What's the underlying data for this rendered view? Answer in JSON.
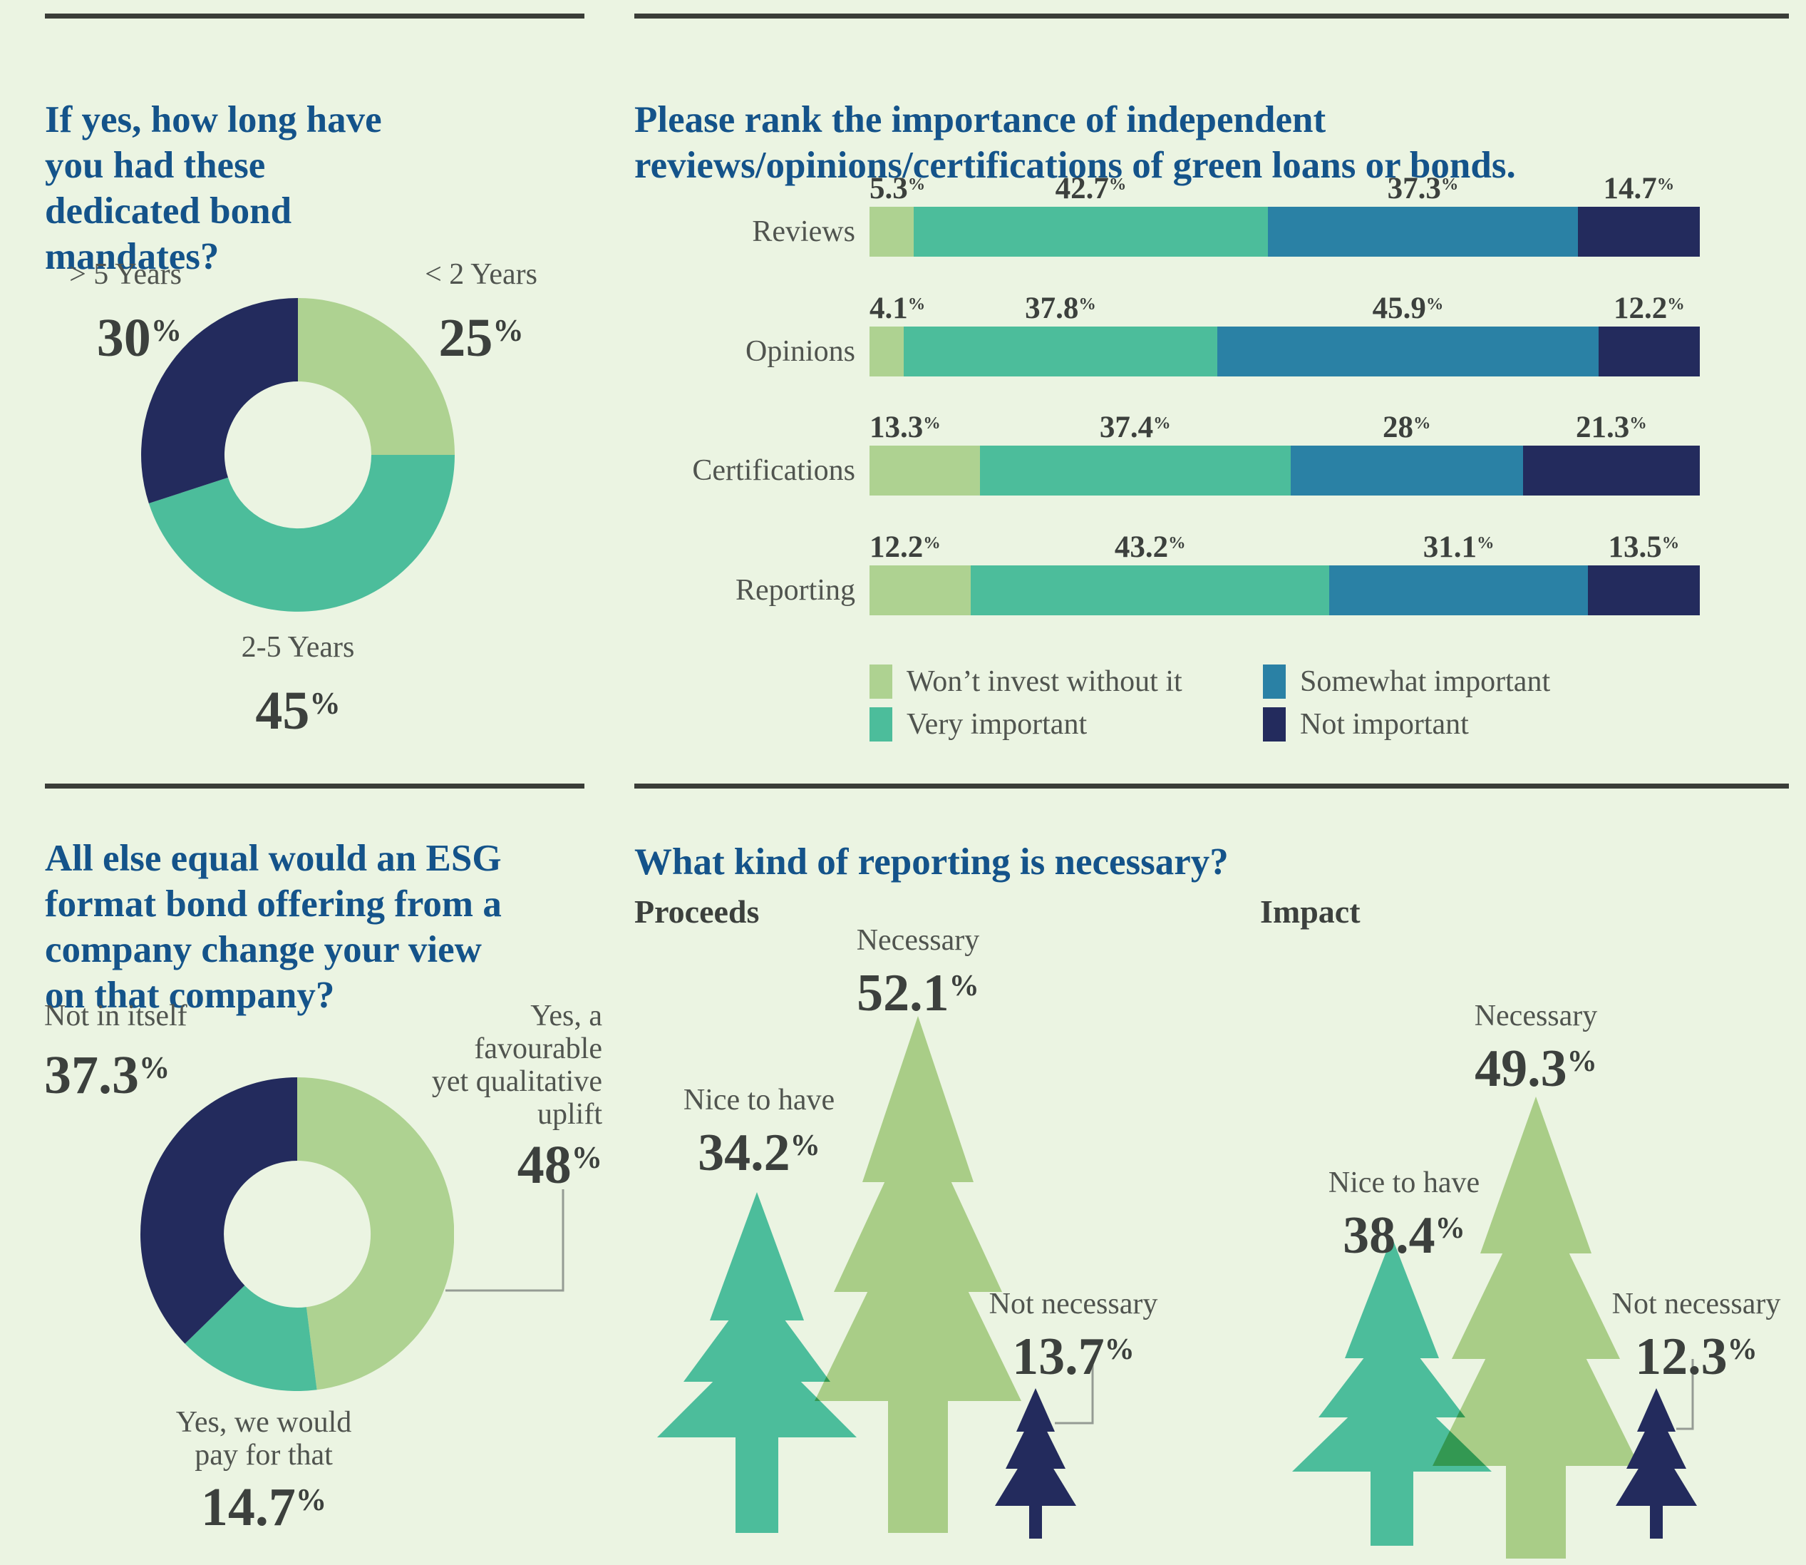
{
  "sym": {
    "pct": "%"
  },
  "palette": {
    "background": "#ebf4e2",
    "light_green": "#aed291",
    "teal": "#4cbd9b",
    "blue": "#2a81a5",
    "navy": "#232b5d",
    "tree_green": "#a9cd87",
    "title_blue": "#14538a",
    "text_gray": "#50544f",
    "number_gray": "#3c403d",
    "rule": "#3a3d38",
    "callout": "#959b94"
  },
  "chart_data": [
    {
      "type": "pie",
      "subtype": "donut",
      "title": "If yes, how long have\nyou had these\ndedicated bond\nmandates?",
      "slices": [
        {
          "label": "< 2 Years",
          "value": 25,
          "color": "light_green"
        },
        {
          "label": "2-5 Years",
          "value": 45,
          "color": "teal"
        },
        {
          "label": "> 5 Years",
          "value": 30,
          "color": "navy"
        }
      ]
    },
    {
      "type": "bar",
      "subtype": "horizontal-stacked",
      "title": "Please rank the importance of independent\nreviews/opinions/certifications of green loans or bonds.",
      "categories": [
        "Reviews",
        "Opinions",
        "Certifications",
        "Reporting"
      ],
      "series": [
        {
          "name": "Won’t invest without it",
          "color": "light_green",
          "values": [
            5.3,
            4.1,
            13.3,
            12.2
          ]
        },
        {
          "name": "Very important",
          "color": "teal",
          "values": [
            42.7,
            37.8,
            37.4,
            43.2
          ]
        },
        {
          "name": "Somewhat important",
          "color": "blue",
          "values": [
            37.3,
            45.9,
            28,
            31.1
          ]
        },
        {
          "name": "Not important",
          "color": "navy",
          "values": [
            14.7,
            12.2,
            21.3,
            13.5
          ]
        }
      ],
      "xlim": [
        0,
        100
      ],
      "legend_position": "bottom"
    },
    {
      "type": "pie",
      "subtype": "donut",
      "title": "All else equal would an ESG\nformat bond offering from a\ncompany change your view\non that company?",
      "slices": [
        {
          "label": "Yes, a\nfavourable\nyet qualitative\nuplift",
          "value": 48,
          "color": "light_green"
        },
        {
          "label": "Yes, we would\npay for that",
          "value": 14.7,
          "color": "teal"
        },
        {
          "label": "Not in itself",
          "value": 37.3,
          "color": "navy"
        }
      ]
    },
    {
      "type": "pictogram",
      "subtype": "trees",
      "title": "What kind of reporting is necessary?",
      "groups": [
        {
          "name": "Proceeds",
          "items": [
            {
              "label": "Necessary",
              "value": 52.1,
              "color": "tree_green"
            },
            {
              "label": "Nice to have",
              "value": 34.2,
              "color": "teal"
            },
            {
              "label": "Not necessary",
              "value": 13.7,
              "color": "navy"
            }
          ]
        },
        {
          "name": "Impact",
          "items": [
            {
              "label": "Necessary",
              "value": 49.3,
              "color": "tree_green"
            },
            {
              "label": "Nice to have",
              "value": 38.4,
              "color": "teal"
            },
            {
              "label": "Not necessary",
              "value": 12.3,
              "color": "navy"
            }
          ]
        }
      ]
    }
  ]
}
